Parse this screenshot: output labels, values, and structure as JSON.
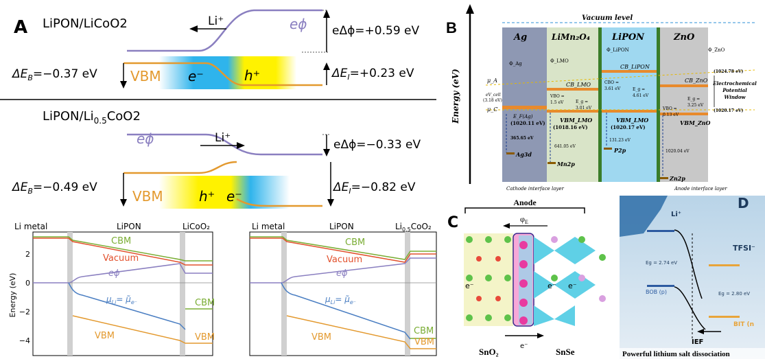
{
  "panel_a": {
    "letter": "A",
    "top_interface": {
      "title": "LiPON/LiCoO2",
      "li_ion": "Li⁺",
      "e_phi": "eϕ",
      "delta_phi": "eΔϕ=+0.59 eV",
      "delta_eb": "ΔE",
      "delta_eb_sub": "B",
      "delta_eb_val": "=−0.37 eV",
      "delta_ei": "ΔE",
      "delta_ei_sub": "I",
      "delta_ei_val": "=+0.23 eV",
      "vbm": "VBM",
      "electron": "e⁻",
      "hole": "h⁺"
    },
    "bottom_interface": {
      "title": "LiPON/Li",
      "title_sub": "0.5",
      "title_rest": "CoO2",
      "li_ion": "Li⁺",
      "e_phi": "eϕ",
      "delta_phi": "eΔϕ=−0.33 eV",
      "delta_eb": "ΔE",
      "delta_eb_sub": "B",
      "delta_eb_val": "=−0.49 eV",
      "delta_ei": "ΔE",
      "delta_ei_sub": "I",
      "delta_ei_val": "=−0.82 eV",
      "vbm": "VBM",
      "electron": "e⁻",
      "hole": "h⁺"
    },
    "plots": {
      "ylabel": "Energy (eV)",
      "yticks": [
        "2",
        "0",
        "−2",
        "−4"
      ],
      "left": {
        "regions": [
          "Li metal",
          "LiPON",
          "LiCoO₂"
        ],
        "labels": {
          "cbm": "CBM",
          "vacuum": "Vacuum",
          "ephi": "eϕ",
          "mu": "μ",
          "mu_sub": "Li",
          "mu_eq": "= μ̃",
          "mu_eq_sub": "e⁻",
          "cbm2": "CBM",
          "vbm": "VBM",
          "vbm2": "VBM"
        }
      },
      "right": {
        "regions": [
          "Li metal",
          "LiPON",
          "Li",
          "0.5",
          "CoO₂"
        ],
        "labels": {
          "cbm": "CBM",
          "vacuum": "Vacuum",
          "ephi": "eϕ",
          "mu": "μ",
          "mu_sub": "Li",
          "mu_eq": "= μ̃",
          "mu_eq_sub": "e⁻",
          "cbm2": "CBM",
          "vbm": "VBM",
          "vbm2": "VBM"
        }
      }
    }
  },
  "panel_b": {
    "letter": "B",
    "yaxis": "Energy (eV)",
    "vacuum_level": "Vacuum level",
    "columns": [
      "Ag",
      "LiMn₂O₄",
      "LiPON",
      "ZnO"
    ],
    "phis": [
      "Φ_Ag",
      "Φ_LMO",
      "Φ_LiPON",
      "Φ_ZnO"
    ],
    "mu_a": "μ_A",
    "mu_c": "μ_C",
    "ev_cell": "eV_cell",
    "ev_cell_val": "(3.18 eV)",
    "ef_ag": "E_F(Ag)",
    "ef_ag_val": "(1020.11 eV)",
    "cb_lmo": "CB_LMO",
    "vbo1": "VBO =",
    "vbo1_val": "1.5 eV",
    "eg1": "E_g =",
    "eg1_val": "3.01 eV",
    "vbm_lmo": "VBM_LMO",
    "vbm_lmo_val": "(1018.16 eV)",
    "cb_lipon": "CB_LiPON",
    "cbo": "CBO =",
    "cbo_val": "3.61 eV",
    "eg2": "E_g =",
    "eg2_val": "4.61 eV",
    "vbm_lmo2": "VBM_LMO",
    "vbm_lmo2_val": "(1020.17 eV)",
    "cb_zno": "CB_ZnO",
    "eg3": "E_g =",
    "eg3_val": "3.25 eV",
    "vbo2": "VBO =",
    "vbo2_val": "0.13 eV",
    "vbm_zno": "VBM_ZnO",
    "top_right": "(1024.78 eV)",
    "bottom_right": "(1020.17 eV)",
    "window": [
      "Electrochemical",
      "Potential",
      "Window"
    ],
    "core": {
      "d1": "365.65 eV",
      "l1": "Ag3d",
      "d2": "641.05 eV",
      "l2": "Mn2p",
      "d3": "131.23 eV",
      "l3": "P2p",
      "d4": "1020.04 eV",
      "l4": "Zn2p"
    },
    "cathode_layer": "Cathode interface layer",
    "anode_layer": "Anode interface layer"
  },
  "panel_c": {
    "letter": "C",
    "anode": "Anode",
    "phi_e": "φ",
    "phi_e_sub": "E",
    "electron_small": "e⁻",
    "left_material": "SnO₂",
    "right_material": "SnSe"
  },
  "panel_d": {
    "letter": "D",
    "li": "Li⁺",
    "tfsi": "TFSI⁻",
    "eg_left": "Eg = 2.74 eV",
    "eg_right": "Eg = 2.80 eV",
    "bob": "BOB (p)",
    "bit": "BIT (n",
    "ief": "IEF",
    "caption": "Powerful lithium salt dissociation"
  },
  "colors": {
    "purple": "#8a7fc0",
    "orange": "#e3992e",
    "green": "#7aad34",
    "red": "#e2502c",
    "blue": "#4a7ec2"
  }
}
